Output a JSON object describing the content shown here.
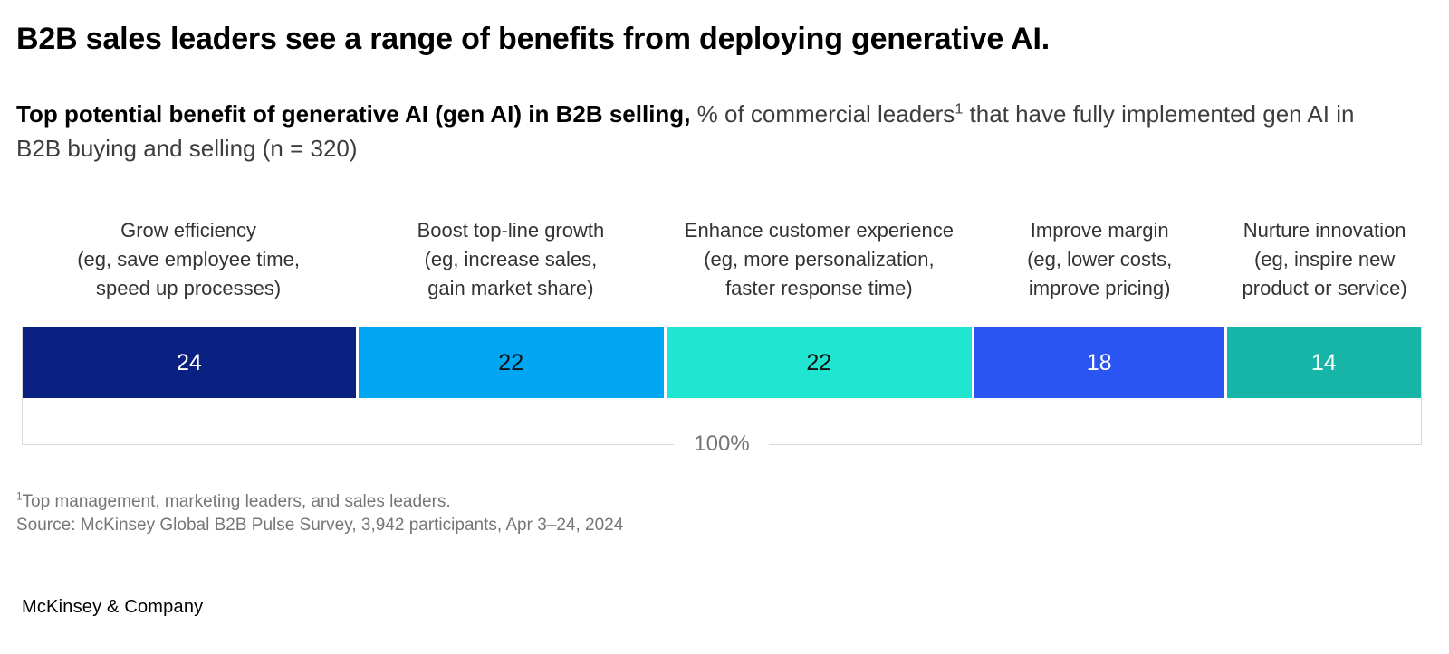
{
  "title": "B2B sales leaders see a range of benefits from deploying generative AI.",
  "subtitle": {
    "bold": "Top potential benefit of generative AI (gen AI) in B2B selling,",
    "regular_1": " % of commercial leaders",
    "footnote_marker": "1",
    "regular_2": " that have fully implemented gen AI in B2B buying and selling (n = 320)"
  },
  "chart_data": {
    "type": "bar",
    "variant": "horizontal-stacked-100-percent",
    "title": "Top potential benefit of generative AI (gen AI) in B2B selling",
    "unit": "% of commercial leaders that have fully implemented gen AI in B2B buying and selling",
    "sample_size": "n = 320",
    "total_label": "100%",
    "axis": {
      "min": 0,
      "max": 100,
      "gridlines": false,
      "legend": "none"
    },
    "categories": [
      "Grow efficiency (eg, save employee time, speed up processes)",
      "Boost top-line growth (eg, increase sales, gain market share)",
      "Enhance customer experience (eg, more personalization, faster response time)",
      "Improve margin (eg, lower costs, improve pricing)",
      "Nurture innovation (eg, inspire new product or service)"
    ],
    "values": [
      24,
      22,
      22,
      18,
      14
    ],
    "segments": [
      {
        "category": "Grow efficiency\n(eg, save employee time,\nspeed up processes)",
        "value": 24,
        "value_label": "24",
        "color": "#0b2181",
        "value_color": "#ffffff"
      },
      {
        "category": "Boost top-line growth\n(eg, increase sales,\ngain market share)",
        "value": 22,
        "value_label": "22",
        "color": "#00a6f2",
        "value_color": "#111111"
      },
      {
        "category": "Enhance customer experience\n(eg, more personalization,\nfaster response time)",
        "value": 22,
        "value_label": "22",
        "color": "#1fe5d1",
        "value_color": "#111111"
      },
      {
        "category": "Improve margin\n(eg, lower costs,\nimprove pricing)",
        "value": 18,
        "value_label": "18",
        "color": "#2b55f2",
        "value_color": "#ffffff"
      },
      {
        "category": "Nurture innovation\n(eg, inspire new\nproduct or service)",
        "value": 14,
        "value_label": "14",
        "color": "#16b5a8",
        "value_color": "#ffffff"
      }
    ],
    "frame_border_color": "#d9d9d9"
  },
  "footnotes": {
    "marker": "1",
    "note": "Top management, marketing leaders, and sales leaders.",
    "source": "Source: McKinsey Global B2B Pulse Survey, 3,942 participants, Apr 3–24, 2024"
  },
  "logo": "McKinsey & Company"
}
